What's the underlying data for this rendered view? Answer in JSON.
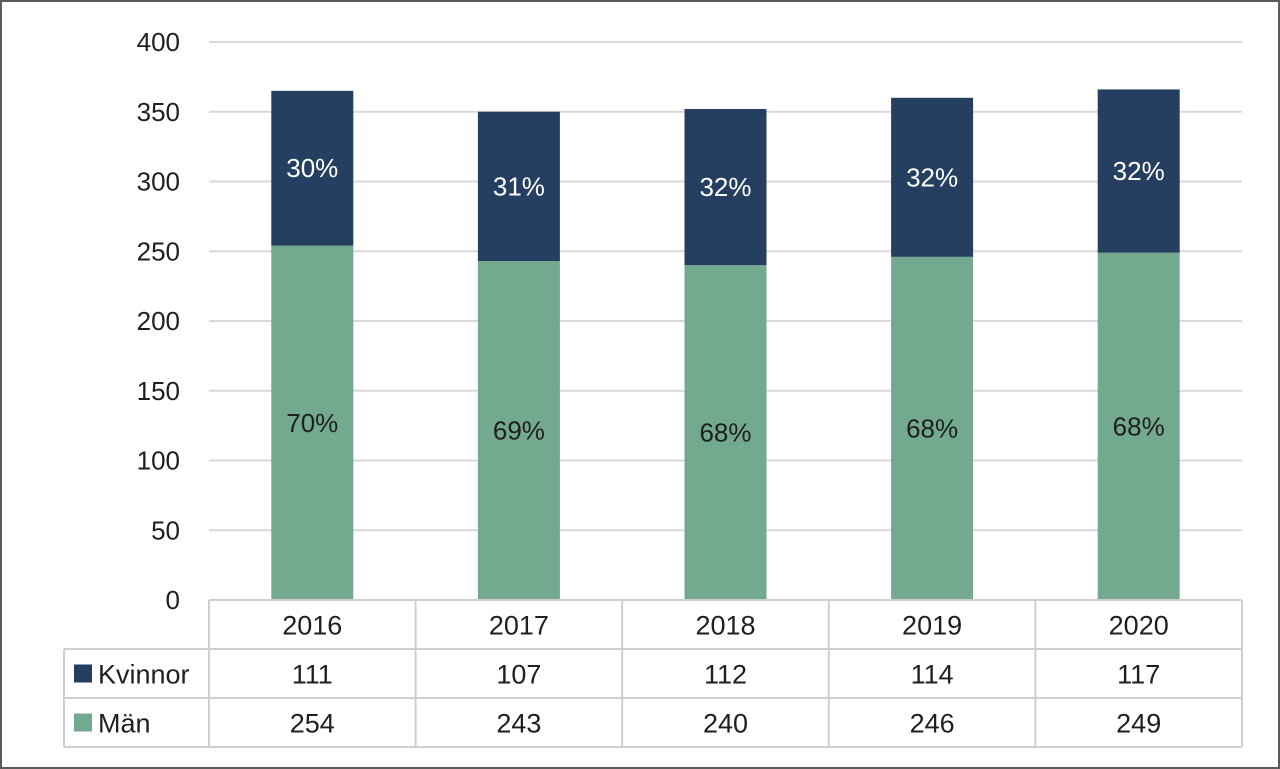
{
  "chart_data": {
    "type": "bar",
    "stacked": true,
    "categories": [
      "2016",
      "2017",
      "2018",
      "2019",
      "2020"
    ],
    "series": [
      {
        "name": "Män",
        "values": [
          254,
          243,
          240,
          246,
          249
        ],
        "labels": [
          "70%",
          "69%",
          "68%",
          "68%",
          "68%"
        ],
        "color": "#72a98f",
        "label_color": "#1f1f1f"
      },
      {
        "name": "Kvinnor",
        "values": [
          111,
          107,
          112,
          114,
          117
        ],
        "labels": [
          "30%",
          "31%",
          "32%",
          "32%",
          "32%"
        ],
        "color": "#243f60",
        "label_color": "#ffffff"
      }
    ],
    "y_ticks": [
      "0",
      "50",
      "100",
      "150",
      "200",
      "250",
      "300",
      "350",
      "400"
    ],
    "ylim": [
      0,
      400
    ],
    "grid": true,
    "data_table": true,
    "table_rows_order": [
      "Kvinnor",
      "Män"
    ]
  },
  "colors": {
    "gridline": "#d9d9d9",
    "table_border": "#cfcfcf",
    "text": "#1f1f1f"
  }
}
